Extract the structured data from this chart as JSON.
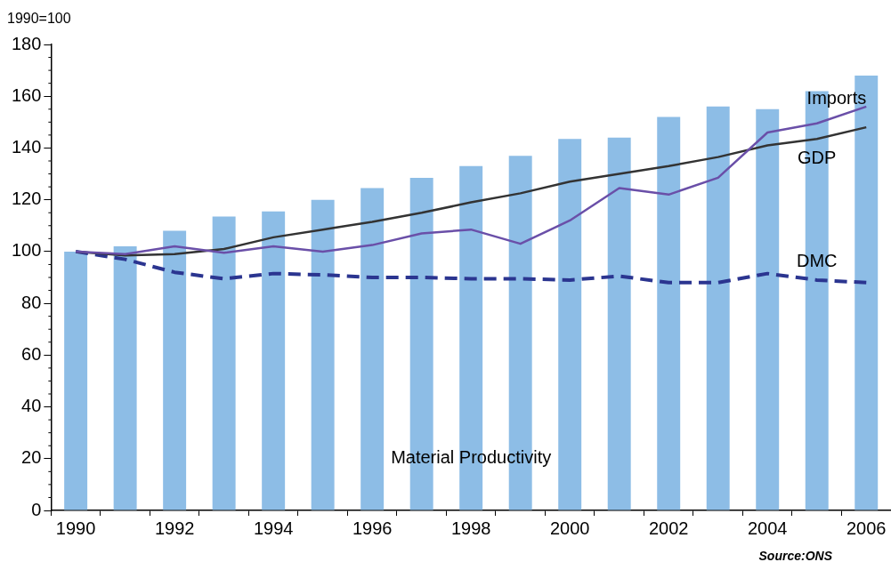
{
  "chart_data": {
    "type": "bar",
    "ylabel": "1990=100",
    "categories": [
      "1990",
      null,
      "1992",
      null,
      "1994",
      null,
      "1996",
      null,
      "1998",
      null,
      "2000",
      null,
      "2002",
      null,
      "2004",
      null,
      "2006"
    ],
    "series": [
      {
        "name": "Material Productivity",
        "color": "#8dbde6",
        "values": [
          100,
          102,
          108,
          113.5,
          115.5,
          120,
          124.5,
          128.5,
          133,
          137,
          143.5,
          144,
          152,
          156,
          155,
          162,
          168
        ]
      },
      {
        "name": "Imports",
        "type": "line",
        "color": "#6a4fa8",
        "line_style": "solid",
        "values": [
          100,
          99,
          102,
          99.5,
          102,
          100,
          102.5,
          107,
          108.5,
          103,
          112,
          124.5,
          122,
          128.5,
          146,
          149.5,
          156
        ]
      },
      {
        "name": "GDP",
        "type": "line",
        "color": "#333333",
        "line_style": "solid",
        "values": [
          100,
          98.5,
          99,
          101,
          105.5,
          108.5,
          111.5,
          115,
          119,
          122.5,
          127,
          130,
          133,
          136.5,
          141,
          143.5,
          148
        ]
      },
      {
        "name": "DMC",
        "type": "line",
        "color": "#2b3590",
        "line_style": "dashed",
        "values": [
          100,
          97,
          92,
          89.5,
          91.5,
          91,
          90,
          90,
          89.5,
          89.5,
          89,
          90.5,
          88,
          88,
          91.5,
          89,
          88
        ]
      }
    ],
    "ylim": [
      0,
      180
    ],
    "yticks": [
      0,
      20,
      40,
      60,
      80,
      100,
      120,
      140,
      160,
      180
    ],
    "grid": false,
    "legend": false,
    "marker": "none",
    "annotations": [
      "Source:ONS"
    ]
  }
}
